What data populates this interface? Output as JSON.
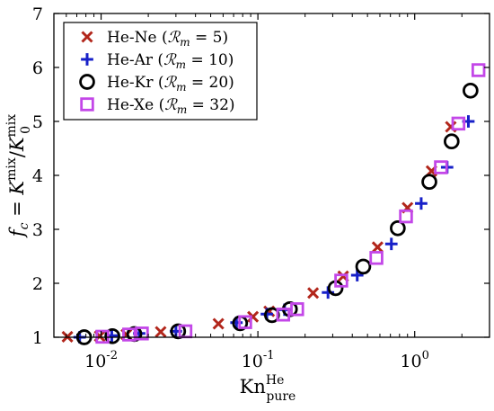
{
  "chart_data": {
    "type": "scatter",
    "title": "",
    "xlabel": {
      "base": "Kn",
      "sub": "pure",
      "sup": "He"
    },
    "ylabel": {
      "f": "f",
      "f_sub": "c",
      "equals": " = ",
      "K": "K",
      "mix": "mix",
      "slash": "/",
      "K0_sub": "0"
    },
    "x_scale": "log",
    "xlim": [
      0.005,
      3
    ],
    "ylim": [
      1,
      7
    ],
    "x_ticks": [
      0.01,
      0.1,
      1
    ],
    "x_tick_labels": [
      {
        "base": "10",
        "exp": "-2"
      },
      {
        "base": "10",
        "exp": "-1"
      },
      {
        "base": "10",
        "exp": "0"
      }
    ],
    "y_ticks": [
      1,
      2,
      3,
      4,
      5,
      6,
      7
    ],
    "y_tick_labels": [
      "1",
      "2",
      "3",
      "4",
      "5",
      "6",
      "7"
    ],
    "grid": false,
    "legend_position": "top-left",
    "series": [
      {
        "name": "He-Ne",
        "param": "5",
        "marker": "x",
        "color": "#b2261b",
        "points": [
          [
            0.0061,
            1.01
          ],
          [
            0.0098,
            1.02
          ],
          [
            0.0145,
            1.05
          ],
          [
            0.024,
            1.1
          ],
          [
            0.056,
            1.25
          ],
          [
            0.093,
            1.38
          ],
          [
            0.118,
            1.48
          ],
          [
            0.225,
            1.82
          ],
          [
            0.35,
            2.13
          ],
          [
            0.58,
            2.67
          ],
          [
            0.9,
            3.4
          ],
          [
            1.28,
            4.08
          ],
          [
            1.7,
            4.9
          ]
        ]
      },
      {
        "name": "He-Ar",
        "param": "10",
        "marker": "+",
        "color": "#1720c8",
        "points": [
          [
            0.0073,
            1.0
          ],
          [
            0.0117,
            1.03
          ],
          [
            0.0175,
            1.07
          ],
          [
            0.03,
            1.11
          ],
          [
            0.073,
            1.27
          ],
          [
            0.114,
            1.43
          ],
          [
            0.148,
            1.51
          ],
          [
            0.28,
            1.83
          ],
          [
            0.43,
            2.15
          ],
          [
            0.71,
            2.73
          ],
          [
            1.1,
            3.48
          ],
          [
            1.61,
            4.15
          ],
          [
            2.2,
            5.0
          ]
        ]
      },
      {
        "name": "He-Kr",
        "param": "20",
        "marker": "o",
        "color": "#000000",
        "points": [
          [
            0.0078,
            1.0
          ],
          [
            0.0118,
            1.02
          ],
          [
            0.0163,
            1.06
          ],
          [
            0.031,
            1.11
          ],
          [
            0.077,
            1.26
          ],
          [
            0.123,
            1.41
          ],
          [
            0.16,
            1.52
          ],
          [
            0.313,
            1.91
          ],
          [
            0.47,
            2.31
          ],
          [
            0.78,
            3.02
          ],
          [
            1.24,
            3.88
          ],
          [
            1.72,
            4.63
          ],
          [
            2.27,
            5.57
          ]
        ]
      },
      {
        "name": "He-Xe",
        "param": "32",
        "marker": "square",
        "color": "#c347e8",
        "points": [
          [
            0.0102,
            1.01
          ],
          [
            0.0151,
            1.05
          ],
          [
            0.0182,
            1.07
          ],
          [
            0.0345,
            1.11
          ],
          [
            0.083,
            1.28
          ],
          [
            0.145,
            1.42
          ],
          [
            0.178,
            1.52
          ],
          [
            0.34,
            2.05
          ],
          [
            0.57,
            2.47
          ],
          [
            0.88,
            3.24
          ],
          [
            1.47,
            4.15
          ],
          [
            1.9,
            4.96
          ],
          [
            2.55,
            5.95
          ]
        ]
      }
    ],
    "legend_param_symbol": {
      "R": "ℛ",
      "sub": "m"
    }
  }
}
